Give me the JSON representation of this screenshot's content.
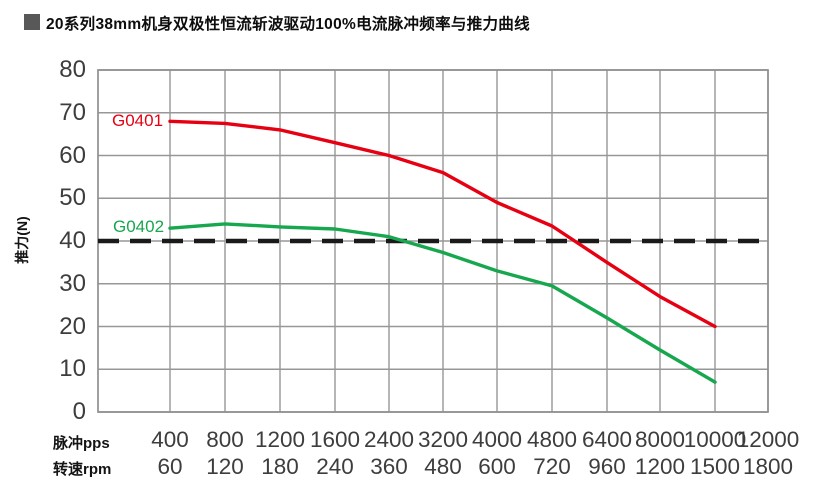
{
  "chart_data": {
    "type": "line",
    "title": "20系列38mm机身双极性恒流斩波驱动100%电流脉冲频率与推力曲线",
    "ylabel": "推力(N)",
    "ylim": [
      0,
      80
    ],
    "ytick_step": 10,
    "yticks": [
      80,
      70,
      60,
      50,
      40,
      30,
      20,
      10,
      0
    ],
    "grid": true,
    "legend_position": "curve-inline-labels",
    "x_axis_rows": [
      {
        "label": "脉冲pps",
        "values": [
          "400",
          "800",
          "1200",
          "1600",
          "2400",
          "3200",
          "4000",
          "4800",
          "6400",
          "8000",
          "10000",
          "12000"
        ]
      },
      {
        "label": "转速rpm",
        "values": [
          "60",
          "120",
          "180",
          "240",
          "360",
          "480",
          "600",
          "720",
          "960",
          "1200",
          "1500",
          "1800"
        ]
      }
    ],
    "series": [
      {
        "name": "G0401",
        "color": "#e60012",
        "values": [
          68,
          67.5,
          66,
          63,
          60,
          56,
          49,
          43.5,
          35,
          27,
          20,
          null
        ]
      },
      {
        "name": "G0402",
        "color": "#17a74e",
        "values": [
          43,
          44,
          43.3,
          42.8,
          41,
          37.3,
          33,
          29.5,
          22,
          14.5,
          7,
          null
        ]
      }
    ],
    "reference_line": {
      "value": 40,
      "style": "dashed",
      "color": "#1a1a1a"
    },
    "colors": {
      "gridline": "#979797",
      "plot_border": "#8f8f8f",
      "tick_text": "#3d3d3d",
      "title_text": "#0d0d0d",
      "bullet": "#585858"
    }
  }
}
